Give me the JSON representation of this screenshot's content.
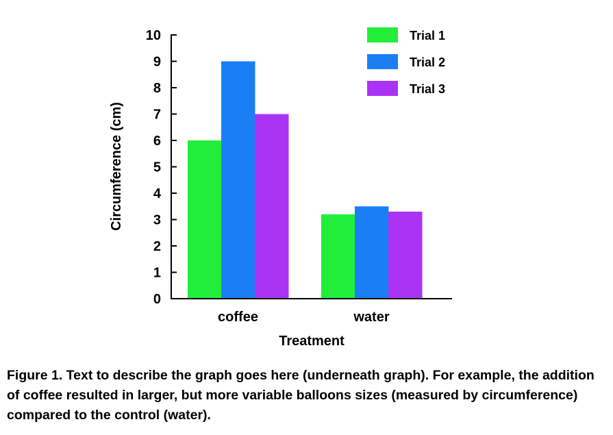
{
  "chart_data": {
    "type": "bar",
    "categories": [
      "coffee",
      "water"
    ],
    "series": [
      {
        "name": "Trial 1",
        "color": "#22ee3a",
        "values": [
          6.0,
          3.2
        ]
      },
      {
        "name": "Trial 2",
        "color": "#1a7ff5",
        "values": [
          9.0,
          3.5
        ]
      },
      {
        "name": "Trial 3",
        "color": "#aa33f5",
        "values": [
          7.0,
          3.3
        ]
      }
    ],
    "xlabel": "Treatment",
    "ylabel": "Circumference (cm)",
    "ylim": [
      0,
      10
    ],
    "yticks": [
      "0",
      "1",
      "2",
      "3",
      "4",
      "5",
      "6",
      "7",
      "8",
      "9",
      "10"
    ],
    "grid": false,
    "legend_position": "top-right"
  },
  "caption": "Figure 1.  Text to describe the graph goes here (underneath graph).  For example, the addition of coffee resulted in larger, but more variable balloons sizes (measured by circumference) compared to the control (water)."
}
